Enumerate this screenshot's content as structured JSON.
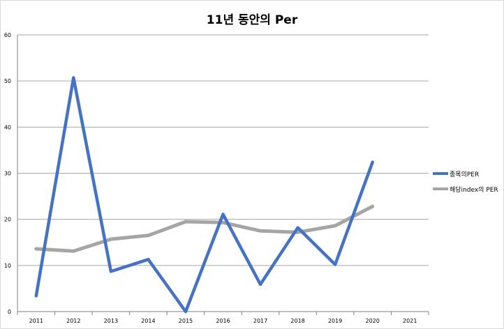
{
  "chart_data": {
    "type": "line",
    "title": "11년 동안의 Per",
    "categories": [
      "2011",
      "2012",
      "2013",
      "2014",
      "2015",
      "2016",
      "2017",
      "2018",
      "2019",
      "2020",
      "2021"
    ],
    "ylim": [
      0,
      60
    ],
    "yticks": [
      "0",
      "10",
      "20",
      "30",
      "40",
      "50",
      "60"
    ],
    "grid": true,
    "legend_position": "right",
    "series": [
      {
        "name": "종목의PER",
        "color": "#4472C4",
        "values": [
          3.4,
          50.7,
          8.7,
          11.3,
          0,
          21.1,
          5.9,
          18.2,
          10.2,
          32.4,
          null
        ]
      },
      {
        "name": "해당index의 PER",
        "color": "#A5A5A5",
        "values": [
          13.6,
          13.1,
          15.7,
          16.5,
          19.5,
          19.3,
          17.5,
          17.2,
          18.6,
          22.8,
          null
        ]
      }
    ]
  }
}
